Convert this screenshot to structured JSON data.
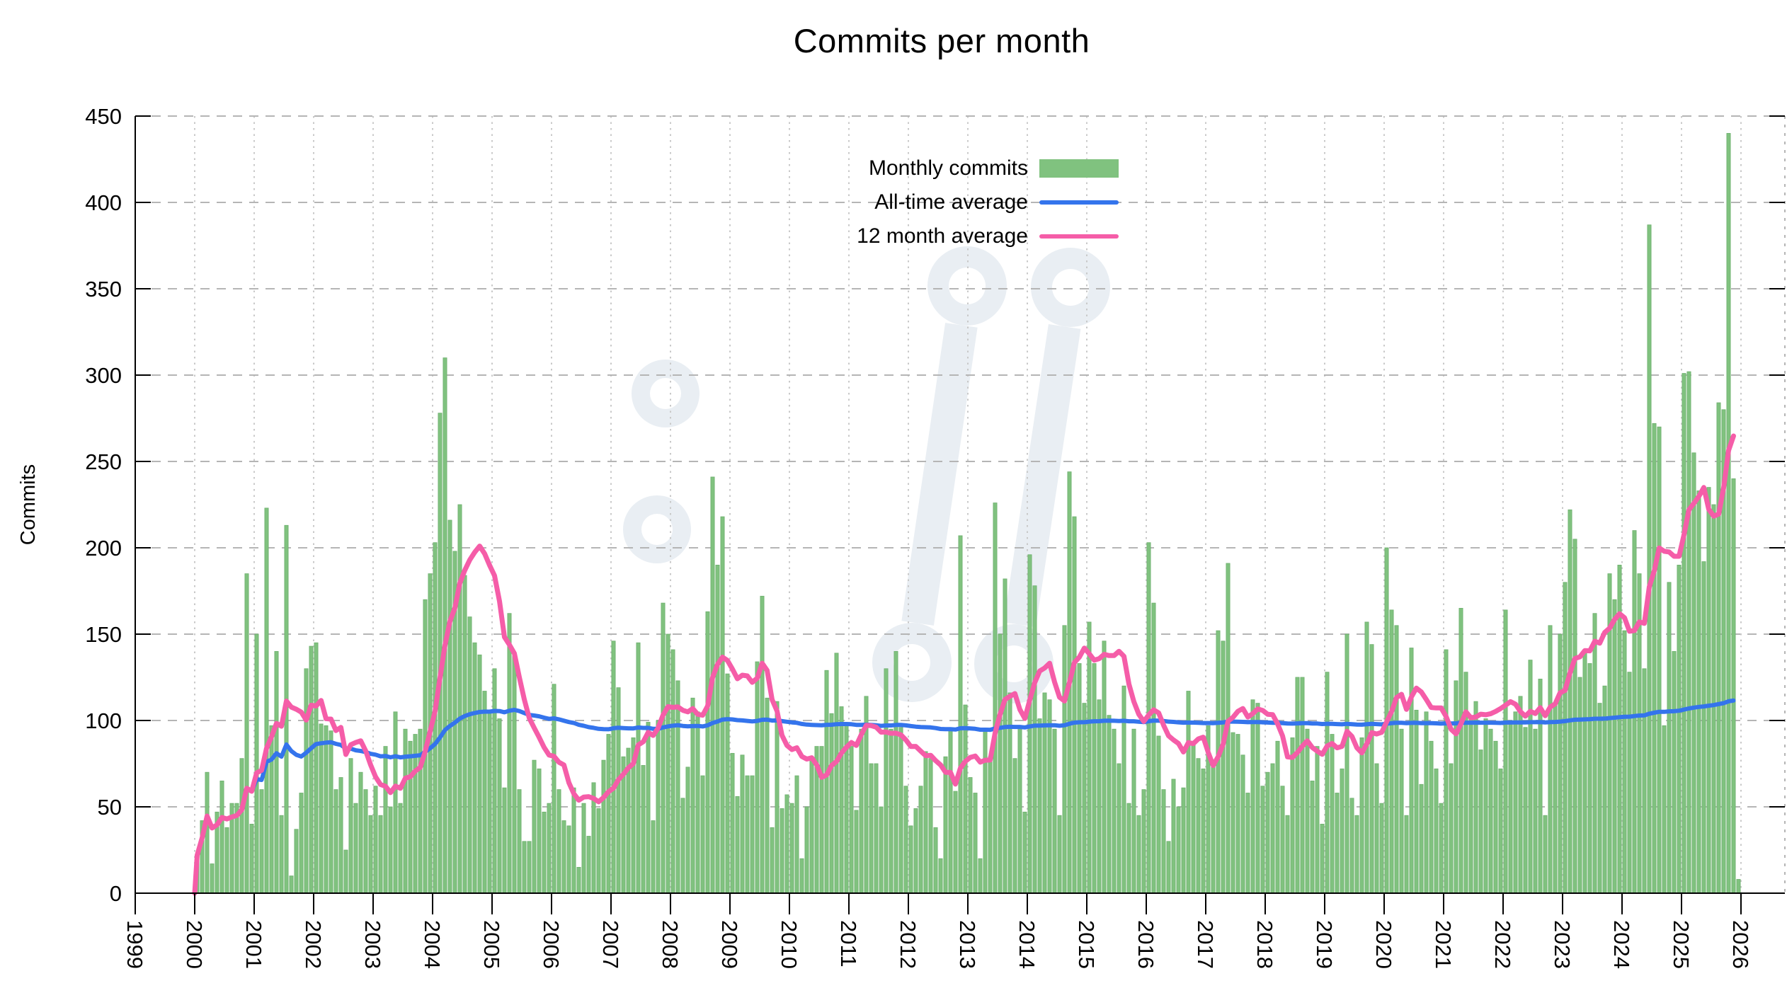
{
  "title": "Commits per month",
  "y_axis": {
    "label": "Commits",
    "ticks": [
      0,
      50,
      100,
      150,
      200,
      250,
      300,
      350,
      400,
      450
    ],
    "max": 450
  },
  "x_axis": {
    "ticks": [
      1999,
      2000,
      2001,
      2002,
      2003,
      2004,
      2005,
      2006,
      2007,
      2008,
      2009,
      2010,
      2011,
      2012,
      2013,
      2014,
      2015,
      2016,
      2017,
      2018,
      2019,
      2020,
      2021,
      2022,
      2023,
      2024,
      2025,
      2026
    ]
  },
  "legend": {
    "items": [
      {
        "label": "Monthly commits",
        "swatch": "box",
        "color": "#80c27f"
      },
      {
        "label": "All-time average",
        "swatch": "line",
        "color": "#3474ec"
      },
      {
        "label": "12 month average",
        "swatch": "line",
        "color": "#f55da8"
      }
    ]
  },
  "colors": {
    "bar_fill": "#80c27f",
    "bar_edge": "#6fb06f",
    "alltime_line": "#3474ec",
    "twelve_month_line": "#f55da8",
    "grid_h": "#b5b5b5",
    "grid_v": "#c9c9c9",
    "axis": "#000000",
    "watermark": "#e9eef3",
    "background": "#ffffff"
  },
  "chart_data": {
    "type": "bar",
    "title": "Commits per month",
    "xlabel": "",
    "ylabel": "Commits",
    "ylim": [
      0,
      450
    ],
    "xlim": [
      1999,
      2026.75
    ],
    "grid": true,
    "legend_position": "top-center",
    "x_unit": "month",
    "start_month": "2000-01",
    "end_month": "2025-12",
    "note_last_value_partial_month": true,
    "series": [
      {
        "name": "Monthly commits",
        "type": "bar",
        "color": "#80c27f",
        "values_by_year": {
          "2000": [
            22,
            42,
            70,
            17,
            47,
            65,
            38,
            52,
            52,
            78,
            185,
            40
          ],
          "2001": [
            150,
            60,
            223,
            97,
            140,
            45,
            213,
            10,
            37,
            58,
            130,
            143
          ],
          "2002": [
            145,
            98,
            97,
            94,
            60,
            67,
            25,
            78,
            52,
            70,
            60,
            45
          ],
          "2003": [
            62,
            45,
            85,
            50,
            105,
            52,
            95,
            88,
            92,
            95,
            170,
            185
          ],
          "2004": [
            203,
            278,
            310,
            216,
            198,
            225,
            184,
            160,
            145,
            138,
            117,
            105
          ],
          "2005": [
            130,
            101,
            61,
            162,
            138,
            60,
            30,
            30,
            77,
            72,
            47,
            52
          ],
          "2006": [
            121,
            60,
            42,
            39,
            61,
            15,
            52,
            33,
            64,
            49,
            77,
            92
          ],
          "2007": [
            146,
            119,
            79,
            84,
            90,
            145,
            74,
            99,
            42,
            100,
            168,
            150
          ],
          "2008": [
            141,
            123,
            55,
            73,
            113,
            105,
            68,
            163,
            241,
            190,
            218,
            127
          ],
          "2009": [
            81,
            56,
            80,
            68,
            68,
            134,
            172,
            113,
            38,
            111,
            49,
            57
          ],
          "2010": [
            52,
            68,
            20,
            50,
            77,
            85,
            85,
            129,
            104,
            139,
            108,
            97
          ],
          "2011": [
            85,
            48,
            95,
            114,
            75,
            75,
            50,
            130,
            95,
            140,
            96,
            62
          ],
          "2012": [
            39,
            49,
            62,
            82,
            78,
            38,
            20,
            79,
            94,
            59,
            207,
            109
          ],
          "2013": [
            67,
            58,
            20,
            95,
            79,
            226,
            150,
            182,
            116,
            78,
            96,
            47
          ],
          "2014": [
            196,
            178,
            101,
            116,
            112,
            95,
            45,
            155,
            244,
            218,
            133,
            110
          ],
          "2015": [
            157,
            133,
            112,
            146,
            103,
            95,
            75,
            120,
            52,
            95,
            45,
            60
          ],
          "2016": [
            203,
            168,
            91,
            60,
            30,
            66,
            50,
            61,
            117,
            88,
            78,
            72
          ],
          "2017": [
            97,
            77,
            152,
            146,
            191,
            93,
            92,
            80,
            58,
            112,
            110,
            62
          ],
          "2018": [
            70,
            75,
            88,
            62,
            45,
            90,
            125,
            125,
            95,
            65,
            85,
            40
          ],
          "2019": [
            128,
            92,
            58,
            72,
            150,
            55,
            45,
            90,
            157,
            144,
            75,
            52
          ],
          "2020": [
            200,
            164,
            155,
            95,
            45,
            142,
            106,
            63,
            105,
            88,
            72,
            52
          ],
          "2021": [
            141,
            75,
            123,
            165,
            128,
            101,
            111,
            83,
            101,
            95,
            88,
            72
          ],
          "2022": [
            164,
            100,
            105,
            114,
            96,
            135,
            95,
            124,
            45,
            155,
            110,
            150
          ],
          "2023": [
            180,
            222,
            205,
            125,
            140,
            133,
            162,
            110,
            120,
            185,
            170,
            190
          ],
          "2024": [
            152,
            128,
            210,
            185,
            130,
            387,
            272,
            270,
            97,
            180,
            140,
            190
          ],
          "2025": [
            301,
            302,
            255,
            233,
            192,
            235,
            225,
            284,
            280,
            440,
            240,
            8
          ]
        }
      },
      {
        "name": "All-time average",
        "type": "line",
        "color": "#3474ec",
        "derived": "cumulative_mean_of_monthly_commits"
      },
      {
        "name": "12 month average",
        "type": "line",
        "color": "#f55da8",
        "derived": "trailing_12_month_mean_of_monthly_commits"
      }
    ]
  }
}
